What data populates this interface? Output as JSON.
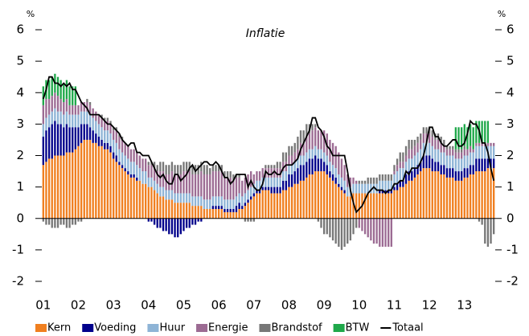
{
  "chart_data": {
    "type": "bar",
    "stacked": true,
    "title": "Inflatie",
    "y_unit": "%",
    "y2_unit": "%",
    "categories": [
      "01",
      null,
      null,
      null,
      null,
      null,
      null,
      null,
      null,
      null,
      null,
      null,
      "02",
      null,
      null,
      null,
      null,
      null,
      null,
      null,
      null,
      null,
      null,
      null,
      "03",
      null,
      null,
      null,
      null,
      null,
      null,
      null,
      null,
      null,
      null,
      null,
      "04",
      null,
      null,
      null,
      null,
      null,
      null,
      null,
      null,
      null,
      null,
      null,
      "05",
      null,
      null,
      null,
      null,
      null,
      null,
      null,
      null,
      null,
      null,
      null,
      "06",
      null,
      null,
      null,
      null,
      null,
      null,
      null,
      null,
      null,
      null,
      null,
      "07",
      null,
      null,
      null,
      null,
      null,
      null,
      null,
      null,
      null,
      null,
      null,
      "08",
      null,
      null,
      null,
      null,
      null,
      null,
      null,
      null,
      null,
      null,
      null,
      "09",
      null,
      null,
      null,
      null,
      null,
      null,
      null,
      null,
      null,
      null,
      null,
      "10",
      null,
      null,
      null,
      null,
      null,
      null,
      null,
      null,
      null,
      null,
      null,
      "11",
      null,
      null,
      null,
      null,
      null,
      null,
      null,
      null,
      null,
      null,
      null,
      "12",
      null,
      null,
      null,
      null,
      null,
      null,
      null,
      null,
      null,
      null,
      null,
      "13",
      null,
      null,
      null,
      null,
      null,
      null,
      null,
      null,
      null,
      null
    ],
    "ylim": [
      -2,
      6
    ],
    "yticks": [
      -2,
      -1,
      0,
      1,
      2,
      3,
      4,
      5,
      6
    ],
    "y2lim": [
      -2,
      6
    ],
    "y2ticks": [
      -2,
      -1,
      0,
      1,
      2,
      3,
      4,
      5,
      6
    ],
    "series": [
      {
        "name": "Kern",
        "color": "#f07f1f",
        "values": [
          1.7,
          1.8,
          1.9,
          1.9,
          2.0,
          2.0,
          2.0,
          2.0,
          2.1,
          2.1,
          2.1,
          2.2,
          2.3,
          2.4,
          2.5,
          2.5,
          2.5,
          2.4,
          2.4,
          2.3,
          2.3,
          2.2,
          2.2,
          2.1,
          1.9,
          1.8,
          1.7,
          1.6,
          1.5,
          1.4,
          1.3,
          1.3,
          1.2,
          1.2,
          1.1,
          1.1,
          1.0,
          1.0,
          0.9,
          0.8,
          0.7,
          0.7,
          0.6,
          0.6,
          0.6,
          0.5,
          0.5,
          0.5,
          0.5,
          0.5,
          0.5,
          0.4,
          0.4,
          0.4,
          0.4,
          0.3,
          0.3,
          0.3,
          0.3,
          0.3,
          0.3,
          0.3,
          0.2,
          0.2,
          0.2,
          0.2,
          0.2,
          0.3,
          0.3,
          0.4,
          0.5,
          0.6,
          0.7,
          0.8,
          0.8,
          0.9,
          0.9,
          0.9,
          0.8,
          0.8,
          0.8,
          0.8,
          0.9,
          0.9,
          1.0,
          1.0,
          1.1,
          1.1,
          1.2,
          1.2,
          1.3,
          1.4,
          1.4,
          1.5,
          1.5,
          1.5,
          1.5,
          1.4,
          1.3,
          1.2,
          1.1,
          1.0,
          0.9,
          0.8,
          0.7,
          0.7,
          0.8,
          0.8,
          0.8,
          0.8,
          0.8,
          0.8,
          0.8,
          0.8,
          0.8,
          0.8,
          0.8,
          0.8,
          0.8,
          0.8,
          0.9,
          0.9,
          1.0,
          1.0,
          1.1,
          1.2,
          1.2,
          1.3,
          1.4,
          1.5,
          1.6,
          1.6,
          1.6,
          1.5,
          1.5,
          1.5,
          1.4,
          1.4,
          1.3,
          1.3,
          1.3,
          1.2,
          1.2,
          1.2,
          1.3,
          1.3,
          1.4,
          1.4,
          1.5,
          1.5,
          1.5,
          1.5,
          1.6,
          1.6,
          1.6
        ]
      },
      {
        "name": "Voeding",
        "color": "#00008b",
        "values": [
          0.9,
          1.0,
          1.0,
          1.1,
          1.1,
          1.0,
          1.0,
          0.9,
          0.9,
          0.8,
          0.8,
          0.7,
          0.6,
          0.6,
          0.5,
          0.5,
          0.4,
          0.4,
          0.3,
          0.3,
          0.2,
          0.2,
          0.2,
          0.2,
          0.2,
          0.2,
          0.1,
          0.1,
          0.1,
          0.1,
          0.1,
          0.1,
          0.1,
          0.0,
          0.0,
          0.0,
          -0.1,
          -0.1,
          -0.2,
          -0.3,
          -0.3,
          -0.4,
          -0.4,
          -0.5,
          -0.5,
          -0.6,
          -0.6,
          -0.5,
          -0.4,
          -0.3,
          -0.3,
          -0.2,
          -0.2,
          -0.1,
          -0.1,
          0.0,
          0.0,
          0.0,
          0.1,
          0.1,
          0.1,
          0.1,
          0.1,
          0.1,
          0.1,
          0.1,
          0.2,
          0.2,
          0.1,
          0.1,
          0.1,
          0.1,
          0.1,
          0.1,
          0.1,
          0.1,
          0.1,
          0.1,
          0.2,
          0.2,
          0.2,
          0.2,
          0.3,
          0.3,
          0.4,
          0.4,
          0.4,
          0.5,
          0.5,
          0.5,
          0.5,
          0.5,
          0.5,
          0.5,
          0.4,
          0.4,
          0.3,
          0.3,
          0.2,
          0.2,
          0.2,
          0.1,
          0.1,
          0.1,
          0.0,
          0.0,
          0.0,
          0.0,
          0.0,
          0.0,
          0.0,
          0.0,
          0.0,
          0.0,
          0.0,
          0.1,
          0.1,
          0.1,
          0.1,
          0.1,
          0.1,
          0.2,
          0.2,
          0.2,
          0.3,
          0.3,
          0.3,
          0.3,
          0.3,
          0.3,
          0.4,
          0.4,
          0.4,
          0.4,
          0.3,
          0.3,
          0.3,
          0.3,
          0.3,
          0.3,
          0.3,
          0.3,
          0.3,
          0.3,
          0.3,
          0.3,
          0.3,
          0.3,
          0.4,
          0.4,
          0.4,
          0.4,
          0.3,
          0.3,
          0.3
        ]
      },
      {
        "name": "Huur",
        "color": "#8eb4d6",
        "values": [
          0.4,
          0.4,
          0.4,
          0.4,
          0.4,
          0.4,
          0.4,
          0.4,
          0.4,
          0.4,
          0.4,
          0.4,
          0.4,
          0.4,
          0.4,
          0.4,
          0.4,
          0.4,
          0.4,
          0.4,
          0.4,
          0.4,
          0.4,
          0.4,
          0.4,
          0.4,
          0.4,
          0.4,
          0.4,
          0.4,
          0.4,
          0.4,
          0.4,
          0.4,
          0.4,
          0.4,
          0.3,
          0.3,
          0.3,
          0.3,
          0.3,
          0.3,
          0.3,
          0.3,
          0.3,
          0.3,
          0.3,
          0.3,
          0.3,
          0.3,
          0.3,
          0.3,
          0.3,
          0.3,
          0.3,
          0.3,
          0.3,
          0.3,
          0.3,
          0.3,
          0.3,
          0.3,
          0.3,
          0.3,
          0.3,
          0.3,
          0.3,
          0.3,
          0.3,
          0.3,
          0.3,
          0.3,
          0.3,
          0.3,
          0.3,
          0.3,
          0.3,
          0.3,
          0.3,
          0.3,
          0.3,
          0.3,
          0.3,
          0.3,
          0.3,
          0.3,
          0.3,
          0.3,
          0.3,
          0.3,
          0.3,
          0.3,
          0.3,
          0.3,
          0.3,
          0.3,
          0.3,
          0.3,
          0.3,
          0.3,
          0.3,
          0.3,
          0.3,
          0.3,
          0.3,
          0.3,
          0.3,
          0.3,
          0.3,
          0.3,
          0.3,
          0.3,
          0.3,
          0.3,
          0.3,
          0.3,
          0.3,
          0.3,
          0.3,
          0.3,
          0.4,
          0.4,
          0.4,
          0.4,
          0.4,
          0.4,
          0.4,
          0.4,
          0.4,
          0.4,
          0.4,
          0.4,
          0.4,
          0.4,
          0.4,
          0.4,
          0.4,
          0.4,
          0.4,
          0.4,
          0.4,
          0.4,
          0.4,
          0.4,
          0.4,
          0.4,
          0.4,
          0.4,
          0.4,
          0.4,
          0.4,
          0.4,
          0.4,
          0.4,
          0.4
        ]
      },
      {
        "name": "Energie",
        "color": "#9c6b93",
        "values": [
          0.6,
          0.6,
          0.5,
          0.5,
          0.5,
          0.5,
          0.4,
          0.4,
          0.4,
          0.3,
          0.3,
          0.3,
          0.3,
          0.3,
          0.3,
          0.3,
          0.3,
          0.3,
          0.3,
          0.3,
          0.3,
          0.3,
          0.3,
          0.3,
          0.3,
          0.4,
          0.4,
          0.4,
          0.4,
          0.4,
          0.4,
          0.4,
          0.4,
          0.4,
          0.4,
          0.4,
          0.4,
          0.4,
          0.4,
          0.4,
          0.5,
          0.5,
          0.5,
          0.5,
          0.6,
          0.6,
          0.6,
          0.6,
          0.7,
          0.7,
          0.7,
          0.7,
          0.7,
          0.7,
          0.8,
          0.8,
          0.8,
          0.8,
          0.8,
          0.8,
          0.8,
          0.8,
          0.7,
          0.7,
          0.7,
          0.6,
          0.6,
          0.5,
          0.5,
          0.5,
          0.5,
          0.5,
          0.3,
          0.3,
          0.3,
          0.3,
          0.3,
          0.3,
          0.3,
          0.3,
          0.3,
          0.3,
          0.3,
          0.3,
          0.3,
          0.3,
          0.3,
          0.3,
          0.4,
          0.4,
          0.5,
          0.5,
          0.6,
          0.6,
          0.6,
          0.6,
          0.7,
          0.7,
          0.7,
          0.7,
          0.7,
          0.7,
          0.6,
          0.5,
          0.4,
          0.3,
          0.2,
          0.1,
          -0.3,
          -0.4,
          -0.5,
          -0.6,
          -0.7,
          -0.8,
          -0.8,
          -0.9,
          -0.9,
          -0.9,
          -0.9,
          -0.9,
          0.1,
          0.2,
          0.2,
          0.2,
          0.2,
          0.3,
          0.3,
          0.3,
          0.3,
          0.3,
          0.3,
          0.3,
          0.3,
          0.3,
          0.3,
          0.3,
          0.3,
          0.2,
          0.2,
          0.2,
          0.2,
          0.2,
          0.2,
          0.2,
          0.2,
          0.2,
          0.2,
          0.1,
          0.1,
          0.1,
          0.1,
          0.1,
          0.1,
          0.1,
          0.1
        ]
      },
      {
        "name": "Brandstof",
        "color": "#777777",
        "values": [
          -0.1,
          -0.2,
          -0.2,
          -0.3,
          -0.3,
          -0.3,
          -0.2,
          -0.2,
          -0.3,
          -0.3,
          -0.2,
          -0.2,
          -0.1,
          -0.1,
          0.0,
          0.1,
          0.1,
          0.0,
          0.0,
          0.0,
          0.1,
          0.1,
          0.1,
          0.1,
          0.1,
          0.1,
          0.1,
          0.1,
          0.0,
          0.0,
          0.0,
          0.0,
          0.0,
          0.0,
          0.0,
          0.0,
          0.1,
          0.1,
          0.2,
          0.2,
          0.3,
          0.3,
          0.3,
          0.3,
          0.3,
          0.3,
          0.3,
          0.3,
          0.3,
          0.3,
          0.3,
          0.3,
          0.3,
          0.3,
          0.3,
          0.3,
          0.3,
          0.2,
          0.2,
          0.2,
          0.2,
          0.2,
          0.2,
          0.2,
          0.2,
          0.2,
          0.1,
          0.1,
          0.0,
          -0.1,
          -0.1,
          -0.1,
          -0.1,
          0.0,
          0.0,
          0.0,
          0.1,
          0.1,
          0.1,
          0.1,
          0.2,
          0.2,
          0.3,
          0.3,
          0.3,
          0.3,
          0.3,
          0.4,
          0.4,
          0.4,
          0.4,
          0.3,
          0.2,
          0.1,
          -0.1,
          -0.3,
          -0.5,
          -0.5,
          -0.6,
          -0.7,
          -0.8,
          -0.9,
          -1.0,
          -0.9,
          -0.8,
          -0.7,
          -0.5,
          -0.3,
          0.1,
          0.1,
          0.1,
          0.2,
          0.2,
          0.2,
          0.2,
          0.2,
          0.2,
          0.2,
          0.2,
          0.2,
          0.2,
          0.2,
          0.3,
          0.3,
          0.3,
          0.3,
          0.3,
          0.2,
          0.2,
          0.2,
          0.2,
          0.2,
          0.2,
          0.2,
          0.2,
          0.2,
          0.2,
          0.2,
          0.1,
          0.1,
          0.1,
          0.1,
          0.1,
          0.1,
          0.1,
          0.0,
          0.0,
          0.0,
          0.0,
          -0.1,
          -0.2,
          -0.8,
          -0.9,
          -0.8,
          -0.5
        ]
      },
      {
        "name": "BTW",
        "color": "#1fa84a",
        "values": [
          0.6,
          0.6,
          0.6,
          0.6,
          0.6,
          0.6,
          0.6,
          0.6,
          0.6,
          0.6,
          0.6,
          0.6,
          0,
          0,
          0,
          0,
          0,
          0,
          0,
          0,
          0,
          0,
          0,
          0,
          0,
          0,
          0,
          0,
          0,
          0,
          0,
          0,
          0,
          0,
          0,
          0,
          0,
          0,
          0,
          0,
          0,
          0,
          0,
          0,
          0,
          0,
          0,
          0,
          0,
          0,
          0,
          0,
          0,
          0,
          0,
          0,
          0,
          0,
          0,
          0,
          0,
          0,
          0,
          0,
          0,
          0,
          0,
          0,
          0,
          0,
          0,
          0,
          0,
          0,
          0,
          0,
          0,
          0,
          0,
          0,
          0,
          0,
          0,
          0,
          0,
          0,
          0,
          0,
          0,
          0,
          0,
          0,
          0,
          0,
          0,
          0,
          0,
          0,
          0,
          0,
          0,
          0,
          0,
          0,
          0,
          0,
          0,
          0,
          0,
          0,
          0,
          0,
          0,
          0,
          0,
          0,
          0,
          0,
          0,
          0,
          0,
          0,
          0,
          0,
          0,
          0,
          0,
          0,
          0,
          0,
          0,
          0,
          0,
          0,
          0,
          0,
          0,
          0,
          0,
          0,
          0,
          0.7,
          0.7,
          0.7,
          0.7,
          0.7,
          0.7,
          0.7,
          0.7,
          0.7,
          0.7,
          0.7,
          0.7,
          0,
          0
        ]
      },
      {
        "name": "Totaal",
        "color": "#000000",
        "type": "line",
        "values": [
          3.8,
          4.1,
          4.5,
          4.5,
          4.3,
          4.3,
          4.2,
          4.3,
          4.2,
          4.3,
          4.1,
          4.1,
          3.9,
          3.7,
          3.6,
          3.5,
          3.3,
          3.3,
          3.3,
          3.3,
          3.2,
          3.1,
          3.0,
          3.0,
          2.9,
          2.8,
          2.7,
          2.5,
          2.4,
          2.3,
          2.4,
          2.4,
          2.1,
          2.1,
          2.0,
          2.0,
          2.0,
          1.8,
          1.6,
          1.4,
          1.3,
          1.4,
          1.2,
          1.1,
          1.1,
          1.4,
          1.4,
          1.2,
          1.3,
          1.4,
          1.6,
          1.7,
          1.5,
          1.6,
          1.7,
          1.8,
          1.8,
          1.7,
          1.7,
          1.8,
          1.7,
          1.5,
          1.3,
          1.3,
          1.1,
          1.2,
          1.4,
          1.4,
          1.4,
          1.4,
          1.0,
          1.2,
          1.0,
          0.9,
          0.9,
          1.1,
          1.5,
          1.4,
          1.4,
          1.5,
          1.4,
          1.4,
          1.6,
          1.7,
          1.7,
          1.7,
          1.8,
          1.9,
          2.2,
          2.4,
          2.6,
          2.8,
          3.2,
          3.2,
          2.9,
          2.8,
          2.6,
          2.3,
          2.2,
          2.0,
          2.0,
          2.0,
          2.0,
          2.0,
          1.5,
          0.9,
          0.5,
          0.2,
          0.3,
          0.4,
          0.6,
          0.8,
          0.9,
          1.0,
          0.9,
          0.9,
          0.9,
          0.8,
          0.9,
          0.9,
          1.1,
          1.1,
          1.2,
          1.2,
          1.5,
          1.4,
          1.6,
          1.6,
          1.6,
          1.8,
          2.0,
          2.4,
          2.9,
          2.9,
          2.6,
          2.6,
          2.4,
          2.3,
          2.3,
          2.4,
          2.5,
          2.5,
          2.3,
          2.3,
          2.4,
          2.7,
          3.1,
          3.0,
          3.0,
          2.8,
          2.4,
          2.4,
          2.1,
          1.6,
          1.2
        ]
      }
    ]
  }
}
